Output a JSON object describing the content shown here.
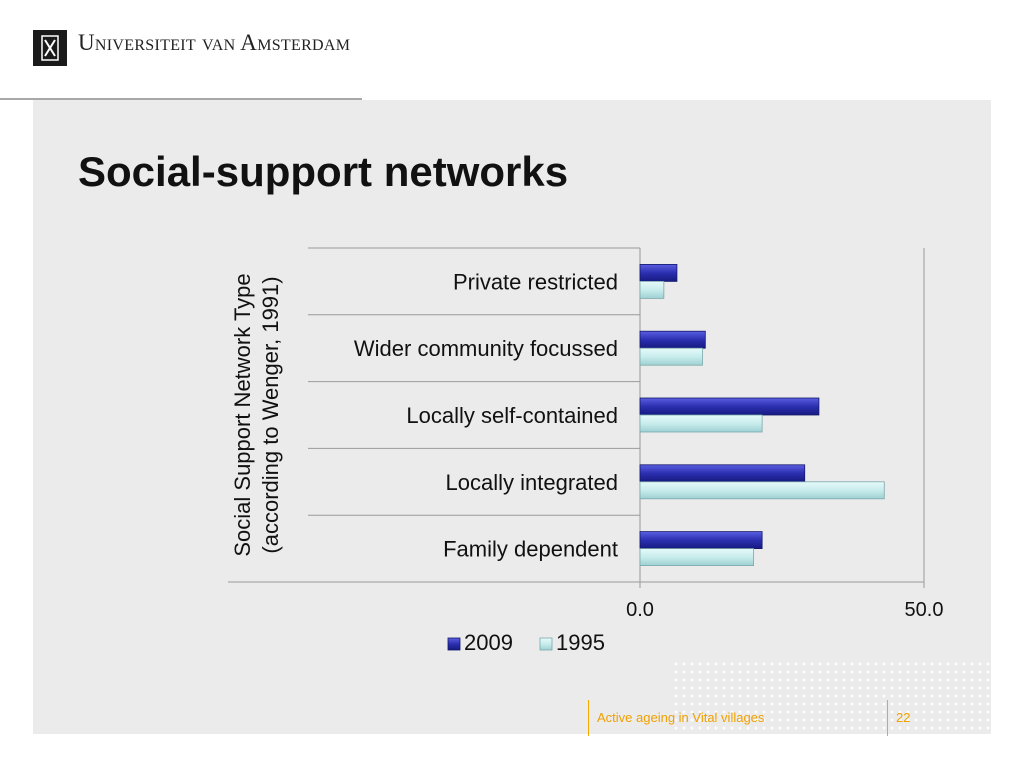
{
  "header": {
    "logo_text": "Universiteit van Amsterdam",
    "logo_icon": "uva-shield-icon"
  },
  "slide": {
    "title": "Social-support networks"
  },
  "footer": {
    "caption": "Active ageing in Vital villages",
    "page_number": "22",
    "accent_color": "#f0a000"
  },
  "chart_data": {
    "type": "bar",
    "orientation": "horizontal",
    "ylabel": "Social Support Network Type (according to Wenger, 1991)",
    "ylabel_lines": [
      "Social Support Network Type",
      "(according to Wenger, 1991)"
    ],
    "categories": [
      "Private restricted",
      "Wider community focussed",
      "Locally self-contained",
      "Locally integrated",
      "Family dependent"
    ],
    "series": [
      {
        "name": "2009",
        "values": [
          6.5,
          11.5,
          31.5,
          29.0,
          21.5
        ],
        "color": "#2b2fb0"
      },
      {
        "name": "1995",
        "values": [
          4.2,
          11.0,
          21.5,
          43.0,
          20.0
        ],
        "color": "#c8ecec"
      }
    ],
    "xlim": [
      0,
      50
    ],
    "xticks": [
      "0.0",
      "50.0"
    ],
    "legend_position": "bottom",
    "grid": false
  }
}
